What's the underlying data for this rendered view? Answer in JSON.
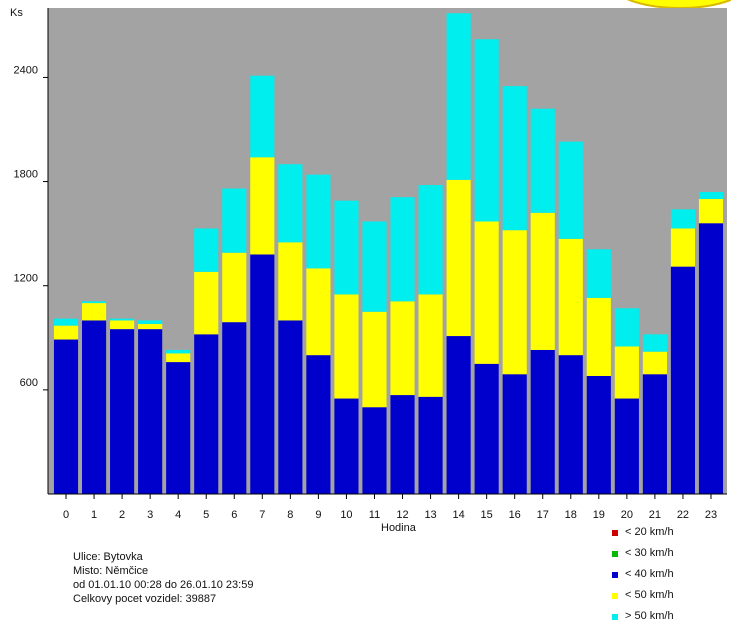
{
  "chart_data": {
    "type": "bar",
    "stacked": true,
    "ylabel": "Ks",
    "xlabel": "Hodina",
    "ylim": [
      0,
      2800
    ],
    "yticks": [
      600,
      1200,
      1800,
      2400
    ],
    "grid": false,
    "legend_position": "bottom-right",
    "categories": [
      "0",
      "1",
      "2",
      "3",
      "4",
      "5",
      "6",
      "7",
      "8",
      "9",
      "10",
      "11",
      "12",
      "13",
      "14",
      "15",
      "16",
      "17",
      "18",
      "19",
      "20",
      "21",
      "22",
      "23"
    ],
    "series": [
      {
        "name": "< 20 km/h",
        "color": "#cc0000",
        "values": [
          0,
          0,
          0,
          0,
          0,
          0,
          0,
          0,
          0,
          0,
          0,
          0,
          0,
          0,
          0,
          0,
          0,
          0,
          0,
          0,
          0,
          0,
          0,
          0
        ]
      },
      {
        "name": "< 30 km/h",
        "color": "#00bb00",
        "values": [
          0,
          0,
          0,
          0,
          0,
          0,
          0,
          0,
          0,
          0,
          0,
          0,
          0,
          0,
          0,
          0,
          0,
          0,
          0,
          0,
          0,
          0,
          0,
          0
        ]
      },
      {
        "name": "< 40 km/h",
        "color": "#0000cc",
        "values": [
          890,
          1000,
          950,
          950,
          760,
          920,
          990,
          1380,
          1000,
          800,
          550,
          500,
          570,
          560,
          910,
          750,
          690,
          830,
          800,
          680,
          550,
          690,
          1310,
          1560
        ]
      },
      {
        "name": "< 50 km/h",
        "color": "#ffff00",
        "values": [
          80,
          100,
          50,
          30,
          50,
          360,
          400,
          560,
          450,
          500,
          600,
          550,
          540,
          590,
          900,
          820,
          830,
          790,
          670,
          450,
          300,
          130,
          220,
          140
        ]
      },
      {
        "name": "> 50 km/h",
        "color": "#00eeee",
        "values": [
          40,
          10,
          10,
          20,
          20,
          250,
          370,
          470,
          450,
          540,
          540,
          520,
          600,
          630,
          960,
          1050,
          830,
          600,
          560,
          280,
          220,
          100,
          110,
          40
        ]
      }
    ]
  },
  "info": {
    "street": "Ulice: Bytovka",
    "place": "Misto: Němčice",
    "period": "od 01.01.10 00:28 do 26.01.10 23:59",
    "total": "Celkovy pocet vozidel: 39887"
  }
}
